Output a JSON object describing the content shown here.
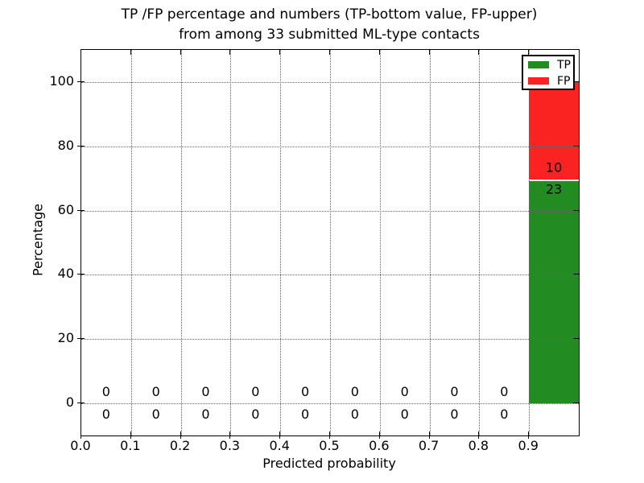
{
  "chart_data": {
    "type": "bar",
    "stacked": true,
    "title_line1": "TP /FP percentage and numbers (TP-bottom value, FP-upper)",
    "title_line2": "from among 33 submitted ML-type contacts",
    "xlabel": "Predicted probability",
    "ylabel": "Percentage",
    "total_contacts": 33,
    "xlim": [
      0.0,
      1.0
    ],
    "ylim": [
      -10,
      110
    ],
    "xticks": [
      "0.0",
      "0.1",
      "0.2",
      "0.3",
      "0.4",
      "0.5",
      "0.6",
      "0.7",
      "0.8",
      "0.9"
    ],
    "yticks": [
      "0",
      "20",
      "40",
      "60",
      "80",
      "100"
    ],
    "grid_style": "dotted",
    "bin_width": 0.1,
    "bin_centers": [
      0.05,
      0.15,
      0.25,
      0.35,
      0.45,
      0.55,
      0.65,
      0.75,
      0.85,
      0.95
    ],
    "series": [
      {
        "name": "TP",
        "color": "#228b22",
        "counts": [
          0,
          0,
          0,
          0,
          0,
          0,
          0,
          0,
          0,
          23
        ],
        "pct": [
          0,
          0,
          0,
          0,
          0,
          0,
          0,
          0,
          0,
          69.7
        ]
      },
      {
        "name": "FP",
        "color": "#fb2222",
        "counts": [
          0,
          0,
          0,
          0,
          0,
          0,
          0,
          0,
          0,
          10
        ],
        "pct": [
          0,
          0,
          0,
          0,
          0,
          0,
          0,
          0,
          0,
          30.3
        ]
      }
    ],
    "bar_labels": {
      "fp": "10",
      "tp": "23"
    },
    "zero_bins": [
      {
        "x": 0.05,
        "fp": "0",
        "tp": "0"
      },
      {
        "x": 0.15,
        "fp": "0",
        "tp": "0"
      },
      {
        "x": 0.25,
        "fp": "0",
        "tp": "0"
      },
      {
        "x": 0.35,
        "fp": "0",
        "tp": "0"
      },
      {
        "x": 0.45,
        "fp": "0",
        "tp": "0"
      },
      {
        "x": 0.55,
        "fp": "0",
        "tp": "0"
      },
      {
        "x": 0.65,
        "fp": "0",
        "tp": "0"
      },
      {
        "x": 0.75,
        "fp": "0",
        "tp": "0"
      },
      {
        "x": 0.85,
        "fp": "0",
        "tp": "0"
      }
    ],
    "legend": {
      "position": "upper right",
      "entries": [
        {
          "label": "TP",
          "color": "#228b22"
        },
        {
          "label": "FP",
          "color": "#fb2222"
        }
      ]
    }
  }
}
